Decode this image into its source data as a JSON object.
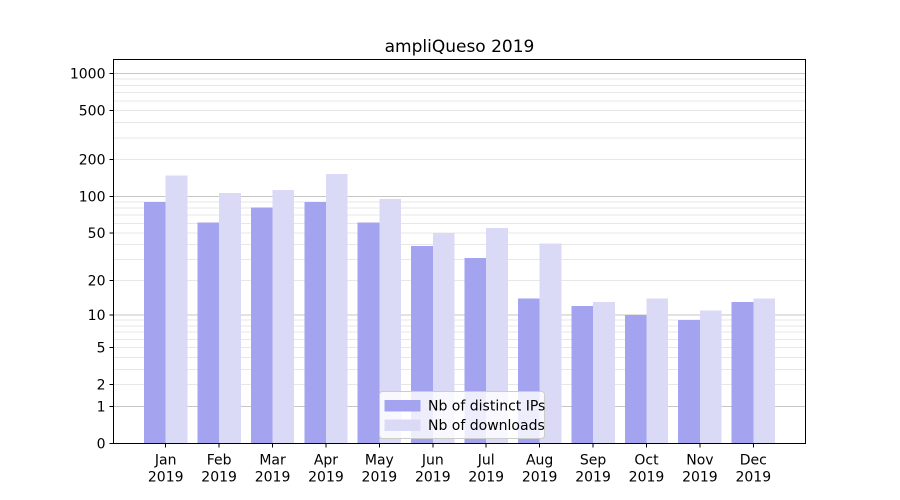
{
  "chart_data": {
    "type": "bar",
    "title": "ampliQueso 2019",
    "scale": "log10(value+1)",
    "categories": [
      "Jan",
      "Feb",
      "Mar",
      "Apr",
      "May",
      "Jun",
      "Jul",
      "Aug",
      "Sep",
      "Oct",
      "Nov",
      "Dec"
    ],
    "category_year": "2019",
    "series": [
      {
        "name": "Nb of distinct IPs",
        "color": "#a3a3ef",
        "values": [
          90,
          61,
          81,
          90,
          61,
          39,
          31,
          14,
          12,
          10,
          9,
          13
        ]
      },
      {
        "name": "Nb of downloads",
        "color": "#dadaf7",
        "values": [
          148,
          107,
          113,
          153,
          95,
          50,
          55,
          41,
          13,
          14,
          11,
          14
        ]
      }
    ],
    "y_ticks": [
      0,
      1,
      2,
      5,
      10,
      20,
      50,
      100,
      200,
      500,
      1000
    ],
    "ylim": [
      0,
      1300
    ],
    "xlabel": "",
    "ylabel": "",
    "grid": "horizontal log minor+major gridlines",
    "legend_position": "bottom-center-inside"
  },
  "colors": {
    "grid_minor": "#e7e7e7",
    "grid_major": "#c6c6c6",
    "axis": "#000000",
    "legend_border": "#cccccc",
    "legend_bg": "rgba(255,255,255,0.8)"
  }
}
